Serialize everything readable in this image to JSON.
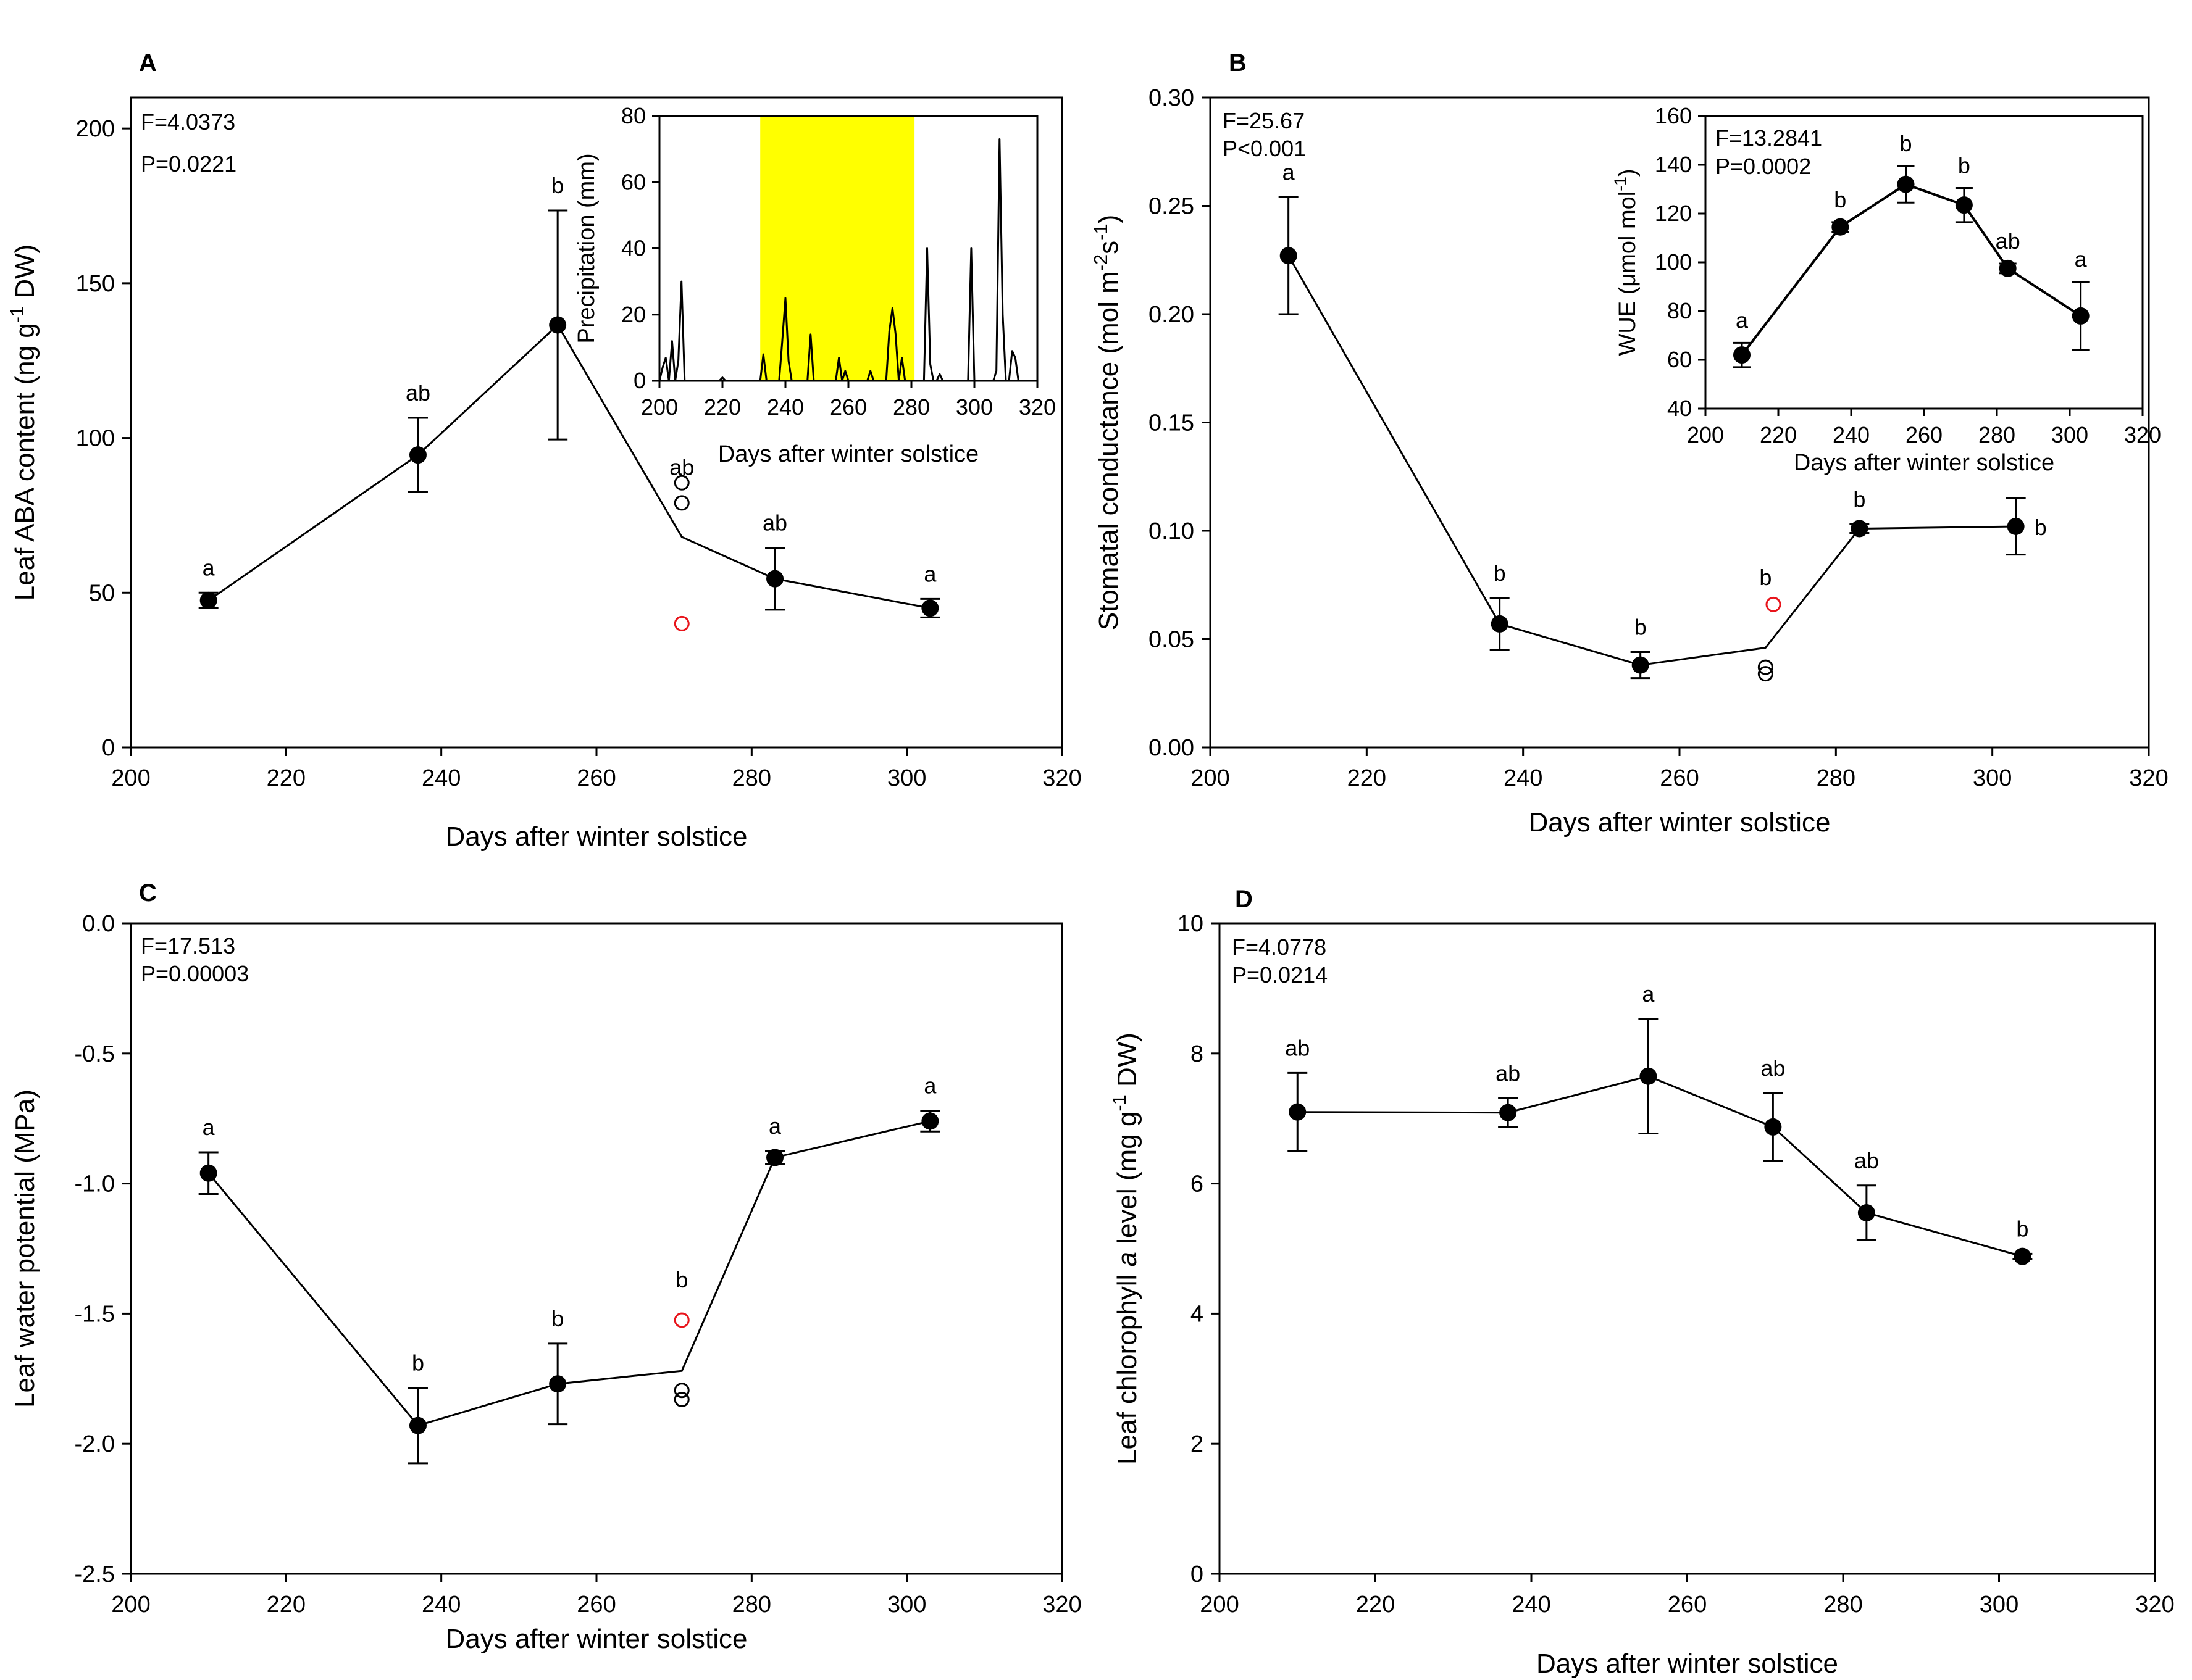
{
  "chart_data": [
    {
      "type": "line",
      "panel": "A",
      "xlabel": "Days after winter solstice",
      "ylabel": "Leaf ABA content (ng g⁻¹ DW)",
      "xlim": [
        200,
        320
      ],
      "ylim": [
        0,
        210
      ],
      "xticks": [
        "200",
        "220",
        "240",
        "260",
        "280",
        "300",
        "320"
      ],
      "yticks": [
        "0",
        "50",
        "100",
        "150",
        "200"
      ],
      "stats": [
        "F=4.0373",
        "P=0.0221"
      ],
      "mean_line": [
        [
          210,
          47.5
        ],
        [
          237,
          94.5
        ],
        [
          255,
          136.5
        ],
        [
          271,
          68
        ],
        [
          283,
          54.5
        ],
        [
          303,
          45
        ]
      ],
      "points": [
        {
          "x": 210,
          "y": 47.5,
          "err": 2.5,
          "label": "a"
        },
        {
          "x": 237,
          "y": 94.5,
          "err": 12,
          "label": "ab"
        },
        {
          "x": 255,
          "y": 136.5,
          "err": 37,
          "label": "b"
        },
        {
          "x": 283,
          "y": 54.5,
          "err": 10,
          "label": "ab"
        },
        {
          "x": 303,
          "y": 45,
          "err": 3,
          "label": "a"
        }
      ],
      "open_points": [
        {
          "x": 271,
          "y": 85.5
        },
        {
          "x": 271,
          "y": 79
        }
      ],
      "red_points": [
        {
          "x": 271,
          "y": 40
        }
      ],
      "extra_labels": [
        {
          "x": 271,
          "y": 88,
          "label": "ab"
        }
      ],
      "inset": {
        "type": "line",
        "xlabel": "Days after winter solstice",
        "ylabel": "Precipitation (mm)",
        "xlim": [
          200,
          320
        ],
        "ylim": [
          0,
          80
        ],
        "xticks": [
          "200",
          "220",
          "240",
          "260",
          "280",
          "300",
          "320"
        ],
        "yticks": [
          "0",
          "20",
          "40",
          "60",
          "80"
        ],
        "highlight_range": [
          232,
          281
        ],
        "highlight_color": "#ffff00",
        "x": [
          200,
          201,
          202,
          203,
          204,
          205,
          206,
          207,
          208,
          209,
          210,
          211,
          212,
          213,
          214,
          215,
          216,
          217,
          218,
          219,
          220,
          221,
          222,
          223,
          224,
          225,
          226,
          227,
          228,
          229,
          230,
          231,
          232,
          233,
          234,
          235,
          236,
          237,
          238,
          239,
          240,
          241,
          242,
          243,
          244,
          245,
          246,
          247,
          248,
          249,
          250,
          251,
          252,
          253,
          254,
          255,
          256,
          257,
          258,
          259,
          260,
          261,
          262,
          263,
          264,
          265,
          266,
          267,
          268,
          269,
          270,
          271,
          272,
          273,
          274,
          275,
          276,
          277,
          278,
          279,
          280,
          281,
          282,
          283,
          284,
          285,
          286,
          287,
          288,
          289,
          290,
          291,
          292,
          293,
          294,
          295,
          296,
          297,
          298,
          299,
          300,
          301,
          302,
          303,
          304,
          305,
          306,
          307,
          308,
          309,
          310,
          311,
          312,
          313,
          314,
          315,
          316,
          317,
          318,
          319,
          320
        ],
        "y": [
          0,
          4,
          7,
          0,
          12,
          0,
          6,
          30,
          0,
          0,
          0,
          0,
          0,
          0,
          0,
          0,
          0,
          0,
          0,
          0,
          1,
          0,
          0,
          0,
          0,
          0,
          0,
          0,
          0,
          0,
          0,
          0,
          0,
          8,
          0,
          0,
          0,
          0,
          0,
          12,
          25,
          6,
          0,
          0,
          0,
          0,
          0,
          0,
          14,
          0,
          0,
          0,
          0,
          0,
          0,
          0,
          0,
          7,
          0,
          3,
          0,
          0,
          0,
          0,
          0,
          0,
          0,
          3,
          0,
          0,
          0,
          0,
          0,
          15,
          22,
          14,
          0,
          7,
          0,
          0,
          0,
          0,
          0,
          0,
          0,
          40,
          5,
          0,
          0,
          2,
          0,
          0,
          0,
          0,
          0,
          0,
          0,
          0,
          0,
          40,
          0,
          0,
          0,
          0,
          0,
          0,
          0,
          3,
          73,
          20,
          0,
          0,
          9,
          7,
          0,
          0,
          0,
          0,
          0,
          0,
          0
        ]
      }
    },
    {
      "type": "line",
      "panel": "B",
      "xlabel": "Days after winter solstice",
      "ylabel": "Stomatal conductance (mol m⁻²s⁻¹)",
      "xlim": [
        200,
        320
      ],
      "ylim": [
        0,
        0.3
      ],
      "xticks": [
        "200",
        "220",
        "240",
        "260",
        "280",
        "300",
        "320"
      ],
      "yticks": [
        "0.00",
        "0.05",
        "0.10",
        "0.15",
        "0.20",
        "0.25",
        "0.30"
      ],
      "stats": [
        "F=25.67",
        "P<0.001"
      ],
      "mean_line": [
        [
          210,
          0.227
        ],
        [
          237,
          0.057
        ],
        [
          255,
          0.038
        ],
        [
          271,
          0.046
        ],
        [
          283,
          0.101
        ],
        [
          303,
          0.102
        ]
      ],
      "points": [
        {
          "x": 210,
          "y": 0.227,
          "err": 0.027,
          "label": "a"
        },
        {
          "x": 237,
          "y": 0.057,
          "err": 0.012,
          "label": "b"
        },
        {
          "x": 255,
          "y": 0.038,
          "err": 0.006,
          "label": "b"
        },
        {
          "x": 283,
          "y": 0.101,
          "err": 0.002,
          "label": "b"
        },
        {
          "x": 303,
          "y": 0.102,
          "err": 0.013,
          "label": "b"
        }
      ],
      "open_points": [
        {
          "x": 271,
          "y": 0.037
        },
        {
          "x": 271,
          "y": 0.034
        }
      ],
      "red_points": [
        {
          "x": 272,
          "y": 0.066
        }
      ],
      "extra_labels": [
        {
          "x": 271,
          "y": 0.075,
          "label": "b"
        }
      ],
      "inset": {
        "type": "line",
        "xlabel": "Days after winter solstice",
        "ylabel": "WUE (μmol mol⁻¹)",
        "xlim": [
          200,
          320
        ],
        "ylim": [
          40,
          160
        ],
        "xticks": [
          "200",
          "220",
          "240",
          "260",
          "280",
          "300",
          "320"
        ],
        "yticks": [
          "40",
          "60",
          "80",
          "100",
          "120",
          "140",
          "160"
        ],
        "stats": [
          "F=13.2841",
          "P=0.0002"
        ],
        "points": [
          {
            "x": 210,
            "y": 62,
            "err": 5,
            "label": "a"
          },
          {
            "x": 237,
            "y": 114.5,
            "err": 2,
            "label": "b"
          },
          {
            "x": 255,
            "y": 132,
            "err": 7.5,
            "label": "b"
          },
          {
            "x": 271,
            "y": 123.5,
            "err": 7,
            "label": "b"
          },
          {
            "x": 283,
            "y": 97.5,
            "err": 2,
            "label": "ab"
          },
          {
            "x": 303,
            "y": 78,
            "err": 14,
            "label": "a"
          }
        ]
      }
    },
    {
      "type": "line",
      "panel": "C",
      "xlabel": "Days after winter solstice",
      "ylabel": "Leaf water potential (MPa)",
      "xlim": [
        200,
        320
      ],
      "ylim": [
        -2.5,
        0
      ],
      "xticks": [
        "200",
        "220",
        "240",
        "260",
        "280",
        "300",
        "320"
      ],
      "yticks": [
        "-2.5",
        "-2.0",
        "-1.5",
        "-1.0",
        "-0.5",
        "0.0"
      ],
      "stats": [
        "F=17.513",
        "P=0.00003"
      ],
      "mean_line": [
        [
          210,
          -0.96
        ],
        [
          237,
          -1.93
        ],
        [
          255,
          -1.77
        ],
        [
          271,
          -1.72
        ],
        [
          283,
          -0.9
        ],
        [
          303,
          -0.76
        ]
      ],
      "points": [
        {
          "x": 210,
          "y": -0.96,
          "err": 0.08,
          "label": "a"
        },
        {
          "x": 237,
          "y": -1.93,
          "err": 0.145,
          "label": "b"
        },
        {
          "x": 255,
          "y": -1.77,
          "err": 0.155,
          "label": "b"
        },
        {
          "x": 283,
          "y": -0.9,
          "err": 0.025,
          "label": "a"
        },
        {
          "x": 303,
          "y": -0.76,
          "err": 0.04,
          "label": "a"
        }
      ],
      "open_points": [
        {
          "x": 271,
          "y": -1.795
        },
        {
          "x": 271,
          "y": -1.83
        }
      ],
      "red_points": [
        {
          "x": 271,
          "y": -1.525
        }
      ],
      "extra_labels": [
        {
          "x": 271,
          "y": -1.4,
          "label": "b"
        }
      ]
    },
    {
      "type": "line",
      "panel": "D",
      "xlabel": "Days after winter solstice",
      "ylabel": "Leaf chlorophyll a level (mg g⁻¹ DW)",
      "xlim": [
        200,
        320
      ],
      "ylim": [
        0,
        10
      ],
      "xticks": [
        "200",
        "220",
        "240",
        "260",
        "280",
        "300",
        "320"
      ],
      "yticks": [
        "0",
        "2",
        "4",
        "6",
        "8",
        "10"
      ],
      "stats": [
        "F=4.0778",
        "P=0.0214"
      ],
      "points": [
        {
          "x": 210,
          "y": 7.1,
          "err": 0.6,
          "label": "ab"
        },
        {
          "x": 237,
          "y": 7.09,
          "err": 0.22,
          "label": "ab"
        },
        {
          "x": 255,
          "y": 7.65,
          "err": 0.88,
          "label": "a"
        },
        {
          "x": 271,
          "y": 6.87,
          "err": 0.52,
          "label": "ab"
        },
        {
          "x": 283,
          "y": 5.55,
          "err": 0.42,
          "label": "ab"
        },
        {
          "x": 303,
          "y": 4.88,
          "err": 0.04,
          "label": "b"
        }
      ]
    }
  ]
}
